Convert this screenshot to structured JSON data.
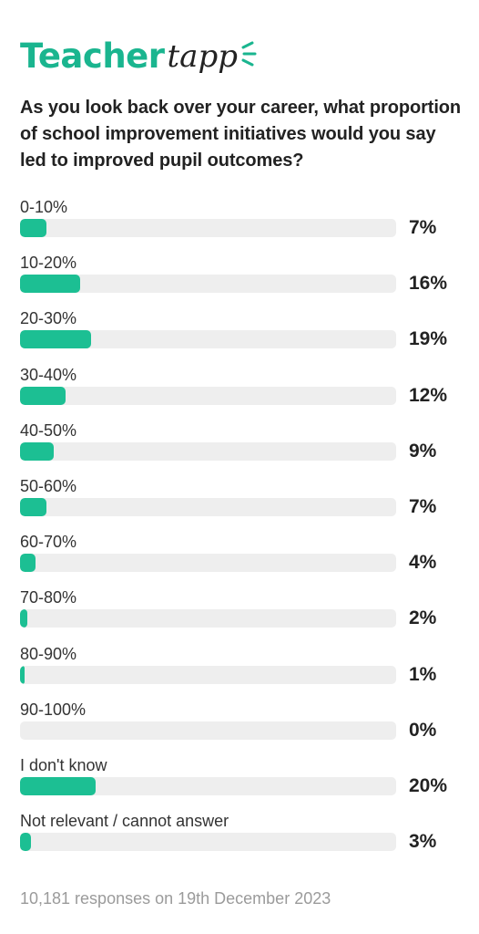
{
  "logo": {
    "brand_main": "Teacher",
    "brand_script": "tapp",
    "brand_color": "#1ab58f",
    "script_color": "#222222"
  },
  "question": "As you look back over your career, what proportion of school improvement initiatives would you say led to improved pupil outcomes?",
  "footer": "10,181 responses on 19th December 2023",
  "colors": {
    "bar_fill": "#1cbf93",
    "bar_track": "#eeeeee"
  },
  "chart_data": {
    "type": "bar",
    "orientation": "horizontal",
    "title": "As you look back over your career, what proportion of school improvement initiatives would you say led to improved pupil outcomes?",
    "categories": [
      "0-10%",
      "10-20%",
      "20-30%",
      "30-40%",
      "40-50%",
      "50-60%",
      "60-70%",
      "70-80%",
      "80-90%",
      "90-100%",
      "I don't know",
      "Not relevant / cannot answer"
    ],
    "values": [
      7,
      16,
      19,
      12,
      9,
      7,
      4,
      2,
      1,
      0,
      20,
      3
    ],
    "value_labels": [
      "7%",
      "16%",
      "19%",
      "12%",
      "9%",
      "7%",
      "4%",
      "2%",
      "1%",
      "0%",
      "20%",
      "3%"
    ],
    "xlim": [
      0,
      100
    ],
    "unit": "%",
    "grid": false,
    "legend": "none"
  }
}
